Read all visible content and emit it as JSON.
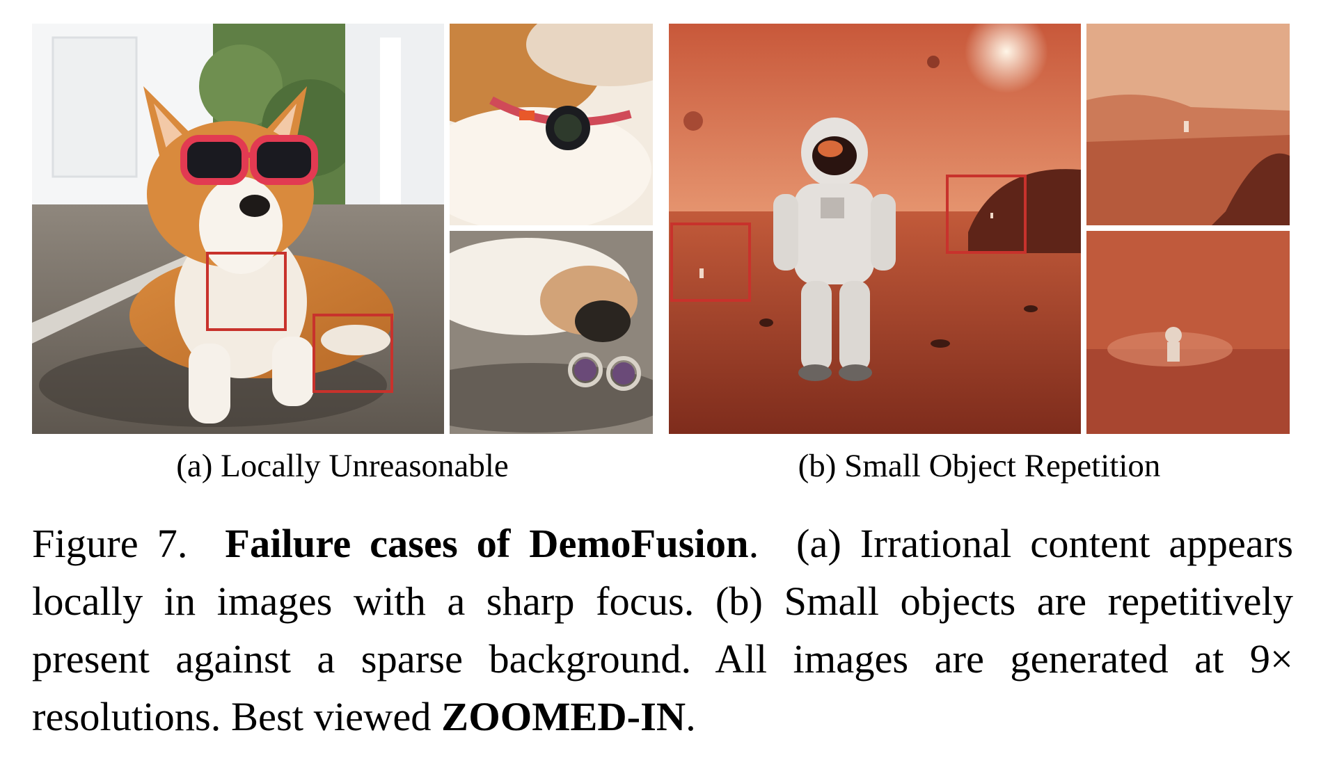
{
  "figure": {
    "subcaption_a": "(a) Locally Unreasonable",
    "subcaption_b": "(b) Small Object Repetition",
    "caption": {
      "label": "Figure 7.",
      "title": "Failure cases of DemoFusion",
      "title_end": ".",
      "text_1": "(a) Irrational content appears locally in images with a sharp focus. (b) Small objects are repetitively present against a sparse background. All images are generated at 9× resolutions. Best viewed",
      "emphasis": "ZOOMED-IN",
      "text_end": "."
    }
  },
  "colors": {
    "highlight_box": "#c8322c",
    "mars_sky": "#d26a45",
    "mars_ground": "#a8432c"
  }
}
